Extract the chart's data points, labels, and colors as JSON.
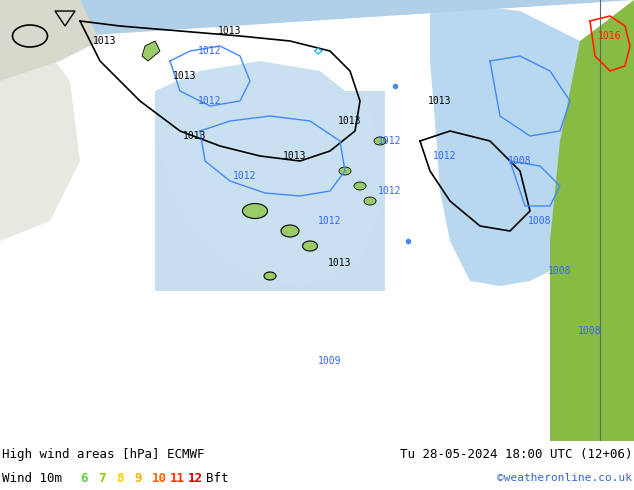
{
  "title_left": "High wind areas [hPa] ECMWF",
  "title_right": "Tu 28-05-2024 18:00 UTC (12+06)",
  "subtitle_left": "Wind 10m",
  "subtitle_right": "©weatheronline.co.uk",
  "bft_labels": [
    "6",
    "7",
    "8",
    "9",
    "10",
    "11",
    "12",
    "Bft"
  ],
  "bft_colors": [
    "#66cc66",
    "#66cc66",
    "#ffcc00",
    "#ffaa00",
    "#ff6600",
    "#ff2200",
    "#cc0000",
    "#000000"
  ],
  "bg_color": "#99cc66",
  "sea_color": "#cce5ff",
  "land_light_color": "#aad464",
  "fig_bg": "#99cc66",
  "bottom_bg": "#ffffff",
  "figsize": [
    6.34,
    4.9
  ],
  "dpi": 100
}
